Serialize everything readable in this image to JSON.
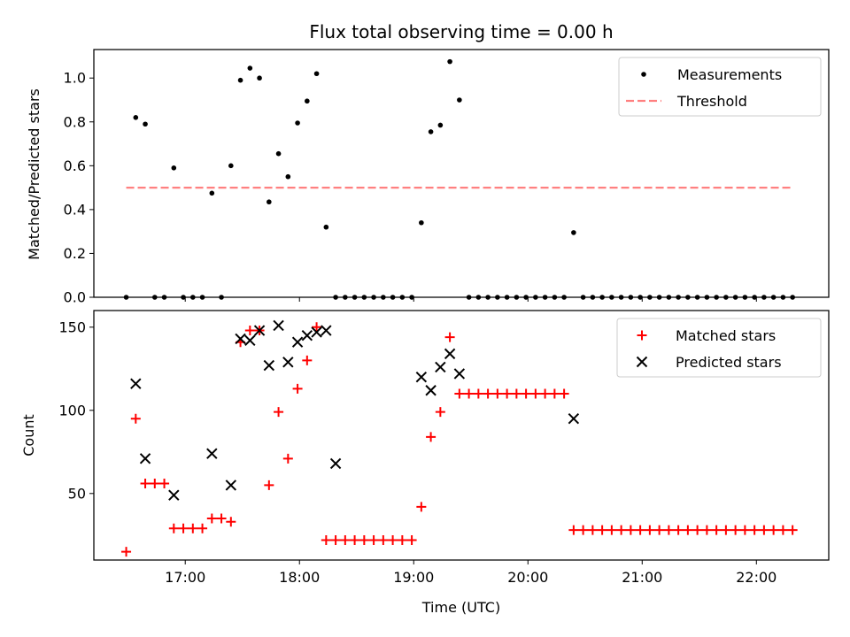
{
  "chart_data": [
    {
      "type": "scatter",
      "title": "Flux total observing time = 0.00 h",
      "xlabel": "",
      "ylabel": "Matched/Predicted stars",
      "xlim": [
        "16:12",
        "22:38"
      ],
      "ylim": [
        0,
        1.13
      ],
      "x_tick_labels": [],
      "y_ticks": [
        0.0,
        0.2,
        0.4,
        0.6,
        0.8,
        1.0
      ],
      "y_tick_labels": [
        "0.0",
        "0.2",
        "0.4",
        "0.6",
        "0.8",
        "1.0"
      ],
      "grid": false,
      "legend_position": "top-right",
      "series": [
        {
          "name": "Measurements",
          "marker": "dot",
          "color": "#000000",
          "x": [
            "16:29",
            "16:34",
            "16:39",
            "16:44",
            "16:49",
            "16:54",
            "16:59",
            "17:04",
            "17:09",
            "17:14",
            "17:19",
            "17:24",
            "17:29",
            "17:34",
            "17:39",
            "17:44",
            "17:49",
            "17:54",
            "17:59",
            "18:04",
            "18:09",
            "18:14",
            "18:19",
            "18:24",
            "18:29",
            "18:34",
            "18:39",
            "18:44",
            "18:49",
            "18:54",
            "18:59",
            "19:04",
            "19:09",
            "19:14",
            "19:19",
            "19:24",
            "19:29",
            "19:34",
            "19:39",
            "19:44",
            "19:49",
            "19:54",
            "19:59",
            "20:04",
            "20:09",
            "20:14",
            "20:19",
            "20:24",
            "20:29",
            "20:34",
            "20:39",
            "20:44",
            "20:49",
            "20:54",
            "20:59",
            "21:04",
            "21:09",
            "21:14",
            "21:19",
            "21:24",
            "21:29",
            "21:34",
            "21:39",
            "21:44",
            "21:49",
            "21:54",
            "21:59",
            "22:04",
            "22:09",
            "22:14",
            "22:19"
          ],
          "y": [
            0.0,
            0.82,
            0.79,
            0.0,
            0.0,
            0.59,
            0.0,
            0.0,
            0.0,
            0.475,
            0.0,
            0.6,
            0.99,
            1.045,
            1.0,
            0.435,
            0.655,
            0.55,
            0.795,
            0.895,
            1.02,
            0.32,
            0.0,
            0.0,
            0.0,
            0.0,
            0.0,
            0.0,
            0.0,
            0.0,
            0.0,
            0.34,
            0.755,
            0.785,
            1.075,
            0.9,
            0.0,
            0.0,
            0.0,
            0.0,
            0.0,
            0.0,
            0.0,
            0.0,
            0.0,
            0.0,
            0.0,
            0.295,
            0.0,
            0.0,
            0.0,
            0.0,
            0.0,
            0.0,
            0.0,
            0.0,
            0.0,
            0.0,
            0.0,
            0.0,
            0.0,
            0.0,
            0.0,
            0.0,
            0.0,
            0.0,
            0.0,
            0.0,
            0.0,
            0.0,
            0.0
          ]
        },
        {
          "name": "Threshold",
          "marker": "dashed-line",
          "color": "#ff8080",
          "x": [
            "16:29",
            "22:19"
          ],
          "y": [
            0.5,
            0.5
          ]
        }
      ]
    },
    {
      "type": "scatter",
      "title": "",
      "xlabel": "Time (UTC)",
      "ylabel": "Count",
      "xlim": [
        "16:12",
        "22:38"
      ],
      "ylim": [
        10,
        160
      ],
      "x_ticks": [
        "17:00",
        "18:00",
        "19:00",
        "20:00",
        "21:00",
        "22:00"
      ],
      "x_tick_labels": [
        "17:00",
        "18:00",
        "19:00",
        "20:00",
        "21:00",
        "22:00"
      ],
      "y_ticks": [
        50,
        100,
        150
      ],
      "y_tick_labels": [
        "50",
        "100",
        "150"
      ],
      "grid": false,
      "legend_position": "top-right",
      "series": [
        {
          "name": "Matched stars",
          "marker": "plus",
          "color": "#ff0000",
          "x": [
            "16:29",
            "16:34",
            "16:39",
            "16:44",
            "16:49",
            "16:54",
            "16:59",
            "17:04",
            "17:09",
            "17:14",
            "17:19",
            "17:24",
            "17:29",
            "17:34",
            "17:39",
            "17:44",
            "17:49",
            "17:54",
            "17:59",
            "18:04",
            "18:09",
            "18:14",
            "18:19",
            "18:24",
            "18:29",
            "18:34",
            "18:39",
            "18:44",
            "18:49",
            "18:54",
            "18:59",
            "19:04",
            "19:09",
            "19:14",
            "19:19",
            "19:24",
            "19:29",
            "19:34",
            "19:39",
            "19:44",
            "19:49",
            "19:54",
            "19:59",
            "20:04",
            "20:09",
            "20:14",
            "20:19",
            "20:24",
            "20:29",
            "20:34",
            "20:39",
            "20:44",
            "20:49",
            "20:54",
            "20:59",
            "21:04",
            "21:09",
            "21:14",
            "21:19",
            "21:24",
            "21:29",
            "21:34",
            "21:39",
            "21:44",
            "21:49",
            "21:54",
            "21:59",
            "22:04",
            "22:09",
            "22:14",
            "22:19"
          ],
          "y": [
            15,
            95,
            56,
            56,
            56,
            29,
            29,
            29,
            29,
            35,
            35,
            33,
            141,
            148,
            148,
            55,
            99,
            71,
            113,
            130,
            150,
            22,
            22,
            22,
            22,
            22,
            22,
            22,
            22,
            22,
            22,
            42,
            84,
            99,
            144,
            110,
            110,
            110,
            110,
            110,
            110,
            110,
            110,
            110,
            110,
            110,
            110,
            28,
            28,
            28,
            28,
            28,
            28,
            28,
            28,
            28,
            28,
            28,
            28,
            28,
            28,
            28,
            28,
            28,
            28,
            28,
            28,
            28,
            28,
            28,
            28
          ]
        },
        {
          "name": "Predicted stars",
          "marker": "x",
          "color": "#000000",
          "x": [
            "16:34",
            "16:39",
            "16:54",
            "17:14",
            "17:24",
            "17:29",
            "17:34",
            "17:39",
            "17:44",
            "17:49",
            "17:54",
            "17:59",
            "18:04",
            "18:09",
            "18:14",
            "18:19",
            "19:04",
            "19:09",
            "19:14",
            "19:19",
            "19:24",
            "20:24"
          ],
          "y": [
            116,
            71,
            49,
            74,
            55,
            143,
            142,
            148,
            127,
            151,
            129,
            141,
            145,
            147,
            148,
            68,
            120,
            112,
            126,
            134,
            122,
            95
          ]
        }
      ]
    }
  ]
}
